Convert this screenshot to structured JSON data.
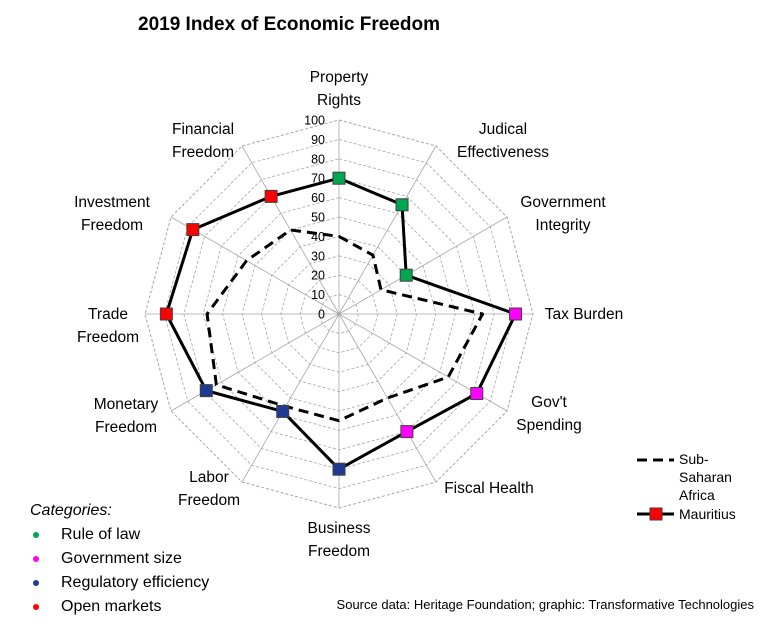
{
  "chart_data": {
    "type": "radar",
    "title": "2019 Index of Economic Freedom",
    "axes": [
      "Property Rights",
      "Judical Effectiveness",
      "Government Integrity",
      "Tax Burden",
      "Gov't Spending",
      "Fiscal Health",
      "Business Freedom",
      "Labor Freedom",
      "Monetary Freedom",
      "Trade Freedom",
      "Investment Freedom",
      "Financial Freedom"
    ],
    "axis_categories": [
      "Rule of law",
      "Rule of law",
      "Rule of law",
      "Government size",
      "Government size",
      "Government size",
      "Regulatory efficiency",
      "Regulatory efficiency",
      "Regulatory efficiency",
      "Open markets",
      "Open markets",
      "Open markets"
    ],
    "rlim": [
      0,
      100
    ],
    "ticks": [
      0,
      10,
      20,
      30,
      40,
      50,
      60,
      70,
      80,
      90,
      100
    ],
    "series": [
      {
        "name": "Mauritius",
        "style": "solid",
        "marker": "square",
        "values": [
          70,
          65,
          40,
          91,
          82,
          70,
          80,
          58,
          79,
          89,
          87,
          70
        ]
      },
      {
        "name": "Sub-Saharan Africa",
        "style": "dashed",
        "marker": "none",
        "values": [
          40,
          35,
          25,
          74,
          65,
          50,
          55,
          55,
          73,
          68,
          55,
          50
        ]
      }
    ],
    "legend_position": "right"
  },
  "categories": {
    "heading": "Categories:",
    "items": [
      {
        "label": "Rule of law",
        "color": "#00a651"
      },
      {
        "label": "Government size",
        "color": "#ff00ff"
      },
      {
        "label": "Regulatory efficiency",
        "color": "#1f3a93"
      },
      {
        "label": "Open markets",
        "color": "#ff0000"
      }
    ]
  },
  "source": "Source data: Heritage Foundation; graphic: Transformative Technologies",
  "colors": {
    "grid": "#a6a6a6",
    "line": "#000000",
    "marker_stroke": "#404040"
  }
}
